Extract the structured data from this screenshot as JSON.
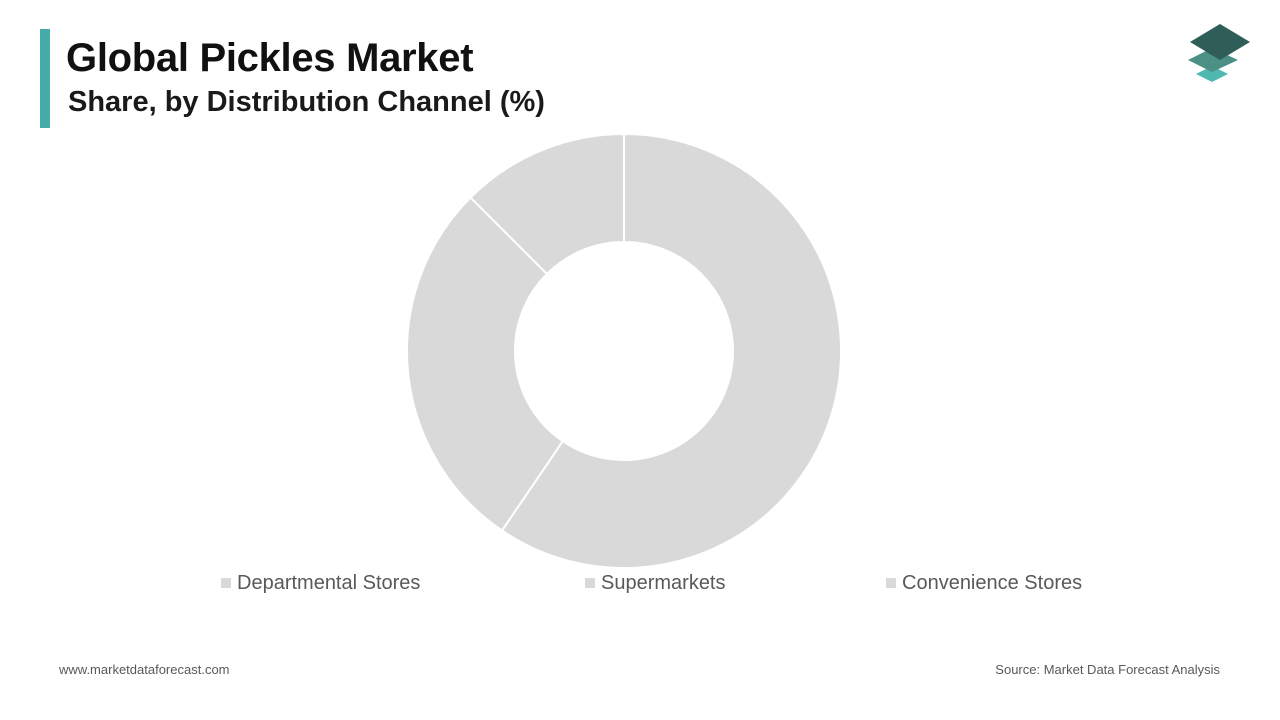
{
  "header": {
    "title": "Global Pickles Market",
    "subtitle": "Share, by Distribution Channel (%)"
  },
  "chart_data": {
    "type": "pie",
    "categories": [
      "Departmental Stores",
      "Supermarkets",
      "Convenience Stores"
    ],
    "values": [
      59.5,
      28,
      12.5
    ],
    "colors": [
      "#d9d9d9",
      "#d9d9d9",
      "#d9d9d9"
    ],
    "legend": "bottom",
    "donut": true
  },
  "footer": {
    "website": "www.marketdataforecast.com",
    "source": "Source: Market Data Forecast Analysis"
  },
  "colors": {
    "accent": "#47aba9",
    "logo_dark": "#2f5d57",
    "logo_mid": "#4b8f85",
    "logo_light": "#4fb8b0"
  }
}
